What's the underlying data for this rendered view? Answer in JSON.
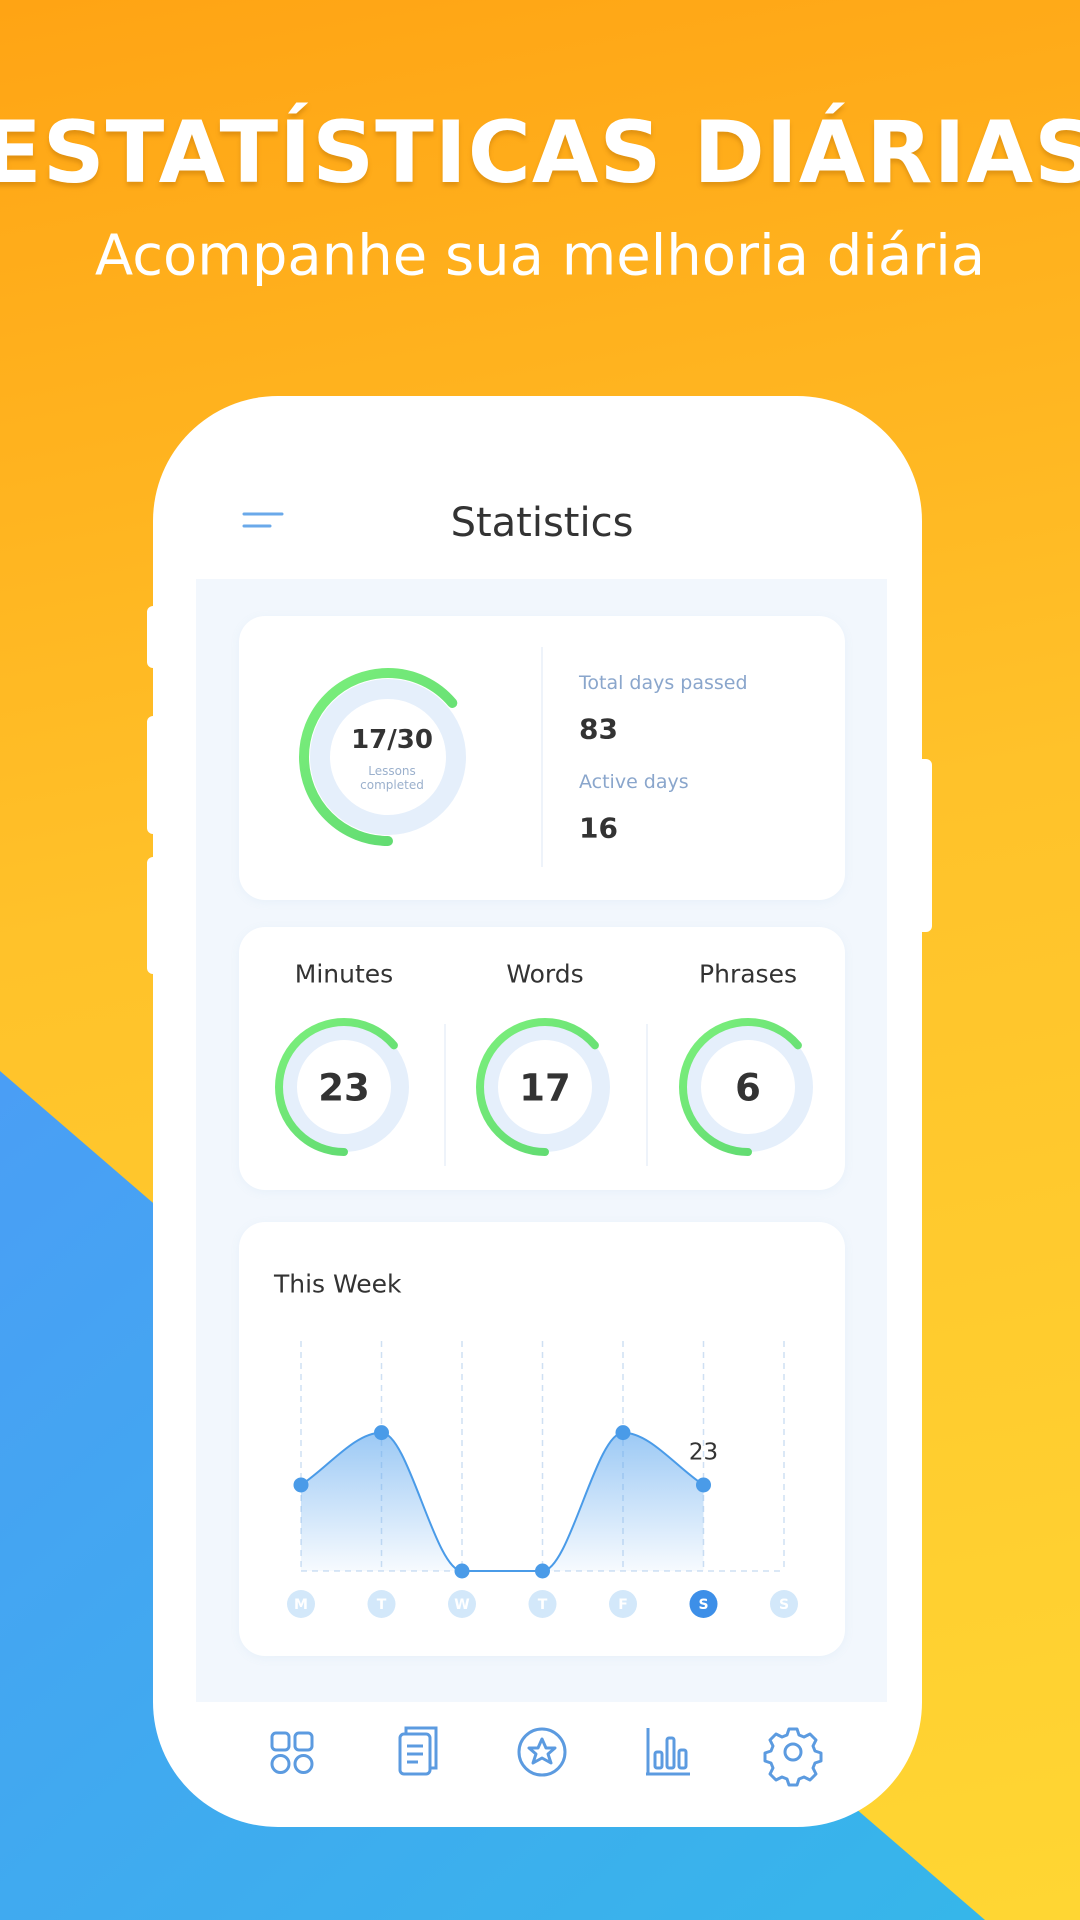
{
  "header": {
    "title": "ESTATÍSTICAS DIÁRIAS",
    "subtitle": "Acompanhe sua melhoria diária"
  },
  "screen": {
    "title": "Statistics",
    "progress": {
      "value": "17/30",
      "label": "Lessons completed",
      "stats": [
        {
          "label": "Total days passed",
          "value": 83
        },
        {
          "label": "Active days",
          "value": 16
        }
      ]
    },
    "counters": [
      {
        "label": "Minutes",
        "value": 23
      },
      {
        "label": "Words",
        "value": 17
      },
      {
        "label": "Phrases",
        "value": 6
      }
    ]
  },
  "chart_data": {
    "type": "line",
    "title": "This Week",
    "categories": [
      "M",
      "T",
      "W",
      "T",
      "F",
      "S",
      "S"
    ],
    "values": [
      23,
      37,
      0,
      0,
      37,
      23,
      null
    ],
    "color": "#4a9be8",
    "selected": 5
  }
}
